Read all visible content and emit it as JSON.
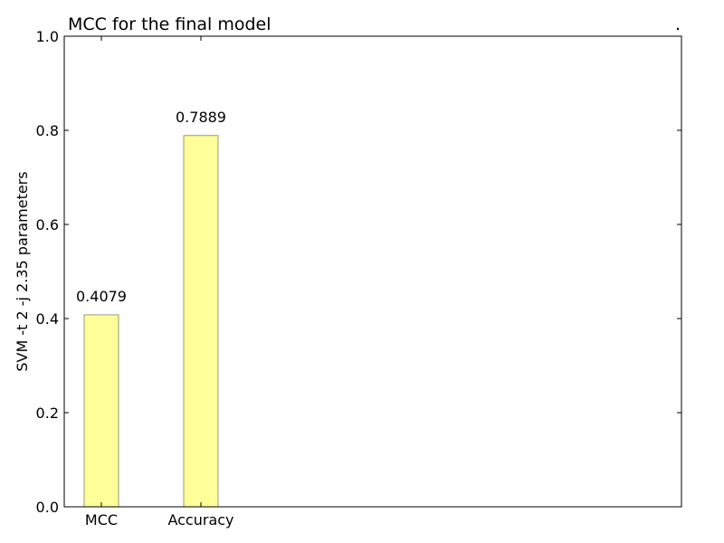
{
  "chart_data": {
    "type": "bar",
    "title": "MCC  for the final model",
    "title_right": ".",
    "xlabel": "",
    "ylabel": "SVM -t 2 -j 2.35 parameters",
    "categories": [
      "MCC",
      "Accuracy"
    ],
    "values": [
      0.4079,
      0.7889
    ],
    "data_labels": [
      "0.4079",
      "0.7889"
    ],
    "ylim": [
      0,
      1.0
    ],
    "yticks": [
      0.0,
      0.2,
      0.4,
      0.6,
      0.8,
      1.0
    ],
    "ytick_labels": [
      "0.0",
      "0.2",
      "0.4",
      "0.6",
      "0.8",
      "1.0"
    ],
    "grid": false,
    "bar_color": "#ffff99",
    "bar_edge_color": "#999977"
  }
}
